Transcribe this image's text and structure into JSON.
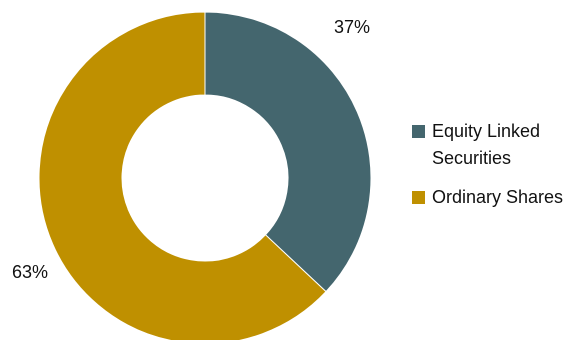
{
  "chart_data": {
    "type": "pie",
    "variant": "donut",
    "title": "",
    "legend_position": "right",
    "slices": [
      {
        "label": "Equity Linked Securities",
        "value": 37,
        "display": "37%",
        "color": "#44666e"
      },
      {
        "label": "Ordinary Shares",
        "value": 63,
        "display": "63%",
        "color": "#bf9000"
      }
    ]
  }
}
